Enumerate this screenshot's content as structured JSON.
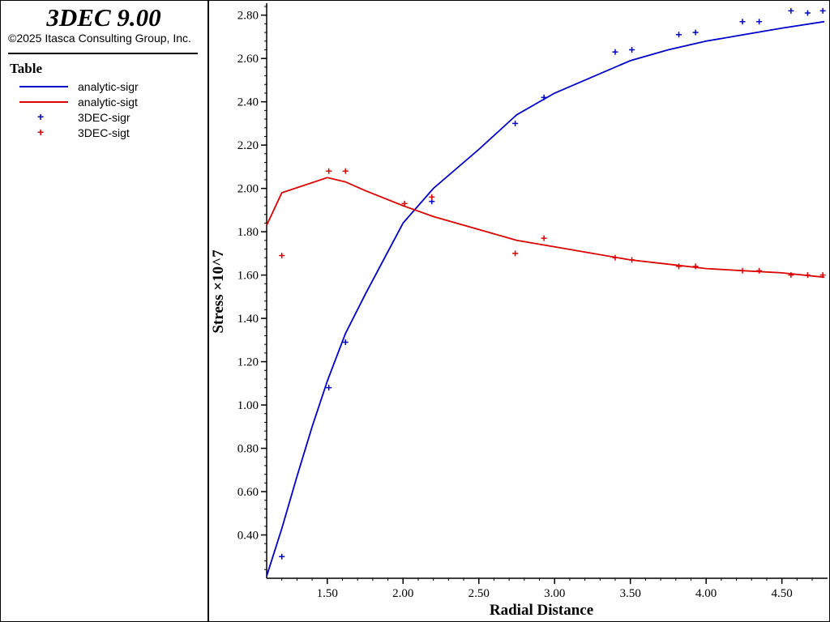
{
  "app": {
    "title": "3DEC 9.00",
    "copyright": "©2025 Itasca Consulting Group, Inc."
  },
  "legend": {
    "title": "Table",
    "items": [
      {
        "label": "analytic-sigr",
        "kind": "line",
        "color": "#0000cc"
      },
      {
        "label": "analytic-sigt",
        "kind": "line",
        "color": "#dd0000"
      },
      {
        "label": "3DEC-sigr",
        "kind": "marker",
        "color": "#0000cc"
      },
      {
        "label": "3DEC-sigt",
        "kind": "marker",
        "color": "#dd0000"
      }
    ]
  },
  "chart_data": {
    "type": "line",
    "xlabel": "Radial Distance",
    "ylabel": "Stress ×10^7",
    "xlim": [
      1.1,
      4.78
    ],
    "ylim": [
      0.2,
      2.84
    ],
    "xticks": [
      "1.50",
      "2.00",
      "2.50",
      "3.00",
      "3.50",
      "4.00",
      "4.50"
    ],
    "yticks": [
      "0.40",
      "0.60",
      "0.80",
      "1.00",
      "1.20",
      "1.40",
      "1.60",
      "1.80",
      "2.00",
      "2.20",
      "2.40",
      "2.60",
      "2.80"
    ],
    "grid": false,
    "legend_position": "left-panel",
    "series": [
      {
        "name": "analytic-sigr",
        "kind": "line",
        "color": "#0000cc",
        "x": [
          1.1,
          1.2,
          1.3,
          1.4,
          1.5,
          1.62,
          1.75,
          2.0,
          2.2,
          2.5,
          2.75,
          3.0,
          3.5,
          3.75,
          4.0,
          4.25,
          4.5,
          4.78
        ],
        "y": [
          0.21,
          0.43,
          0.67,
          0.9,
          1.11,
          1.33,
          1.51,
          1.84,
          2.0,
          2.18,
          2.34,
          2.44,
          2.59,
          2.64,
          2.68,
          2.71,
          2.74,
          2.77
        ]
      },
      {
        "name": "analytic-sigt",
        "kind": "line",
        "color": "#dd0000",
        "x": [
          1.1,
          1.2,
          1.5,
          1.62,
          1.75,
          2.0,
          2.2,
          2.5,
          2.75,
          3.0,
          3.5,
          3.75,
          4.0,
          4.25,
          4.5,
          4.78
        ],
        "y": [
          1.83,
          1.98,
          2.05,
          2.03,
          1.99,
          1.92,
          1.87,
          1.81,
          1.76,
          1.73,
          1.67,
          1.65,
          1.63,
          1.62,
          1.61,
          1.59
        ]
      },
      {
        "name": "3DEC-sigr",
        "kind": "scatter",
        "color": "#0000cc",
        "x": [
          1.2,
          1.51,
          1.62,
          2.19,
          2.74,
          2.93,
          3.4,
          3.51,
          3.82,
          3.93,
          4.24,
          4.35,
          4.56,
          4.67,
          4.77
        ],
        "y": [
          0.3,
          1.08,
          1.29,
          1.94,
          2.3,
          2.42,
          2.63,
          2.64,
          2.71,
          2.72,
          2.77,
          2.77,
          2.82,
          2.81,
          2.82
        ]
      },
      {
        "name": "3DEC-sigt",
        "kind": "scatter",
        "color": "#dd0000",
        "x": [
          1.2,
          1.51,
          1.62,
          2.01,
          2.19,
          2.74,
          2.93,
          3.4,
          3.51,
          3.82,
          3.93,
          4.24,
          4.35,
          4.56,
          4.67,
          4.77
        ],
        "y": [
          1.69,
          2.08,
          2.08,
          1.93,
          1.96,
          1.7,
          1.77,
          1.68,
          1.67,
          1.64,
          1.64,
          1.62,
          1.62,
          1.6,
          1.6,
          1.6
        ]
      }
    ]
  }
}
